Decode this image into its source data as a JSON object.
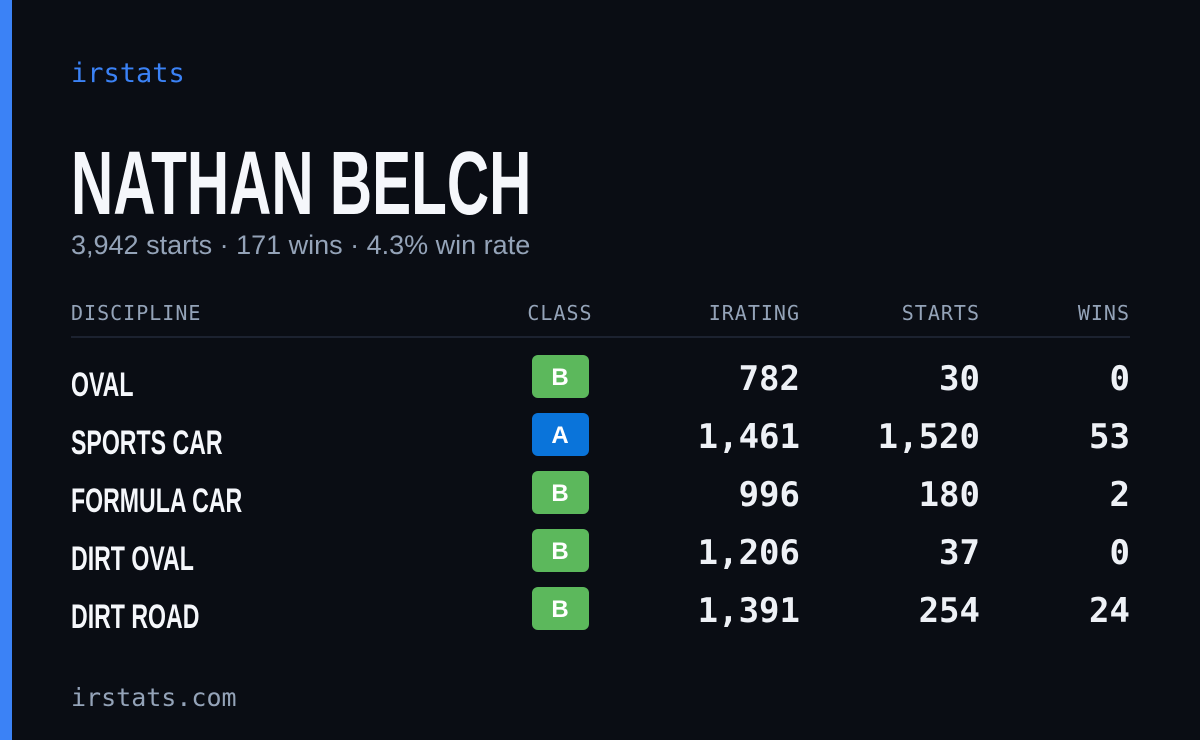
{
  "header": {
    "brand": "irstats",
    "name": "NATHAN BELCH",
    "summary": "3,942 starts · 171 wins · 4.3% win rate"
  },
  "table": {
    "columns": [
      "DISCIPLINE",
      "CLASS",
      "IRATING",
      "STARTS",
      "WINS"
    ],
    "rows": [
      {
        "discipline": "OVAL",
        "class": "B",
        "class_color": "#5cb85c",
        "irating": "782",
        "starts": "30",
        "wins": "0"
      },
      {
        "discipline": "SPORTS CAR",
        "class": "A",
        "class_color": "#0a74da",
        "irating": "1,461",
        "starts": "1,520",
        "wins": "53"
      },
      {
        "discipline": "FORMULA CAR",
        "class": "B",
        "class_color": "#5cb85c",
        "irating": "996",
        "starts": "180",
        "wins": "2"
      },
      {
        "discipline": "DIRT OVAL",
        "class": "B",
        "class_color": "#5cb85c",
        "irating": "1,206",
        "starts": "37",
        "wins": "0"
      },
      {
        "discipline": "DIRT ROAD",
        "class": "B",
        "class_color": "#5cb85c",
        "irating": "1,391",
        "starts": "254",
        "wins": "24"
      }
    ]
  },
  "footer": {
    "site": "irstats.com"
  }
}
